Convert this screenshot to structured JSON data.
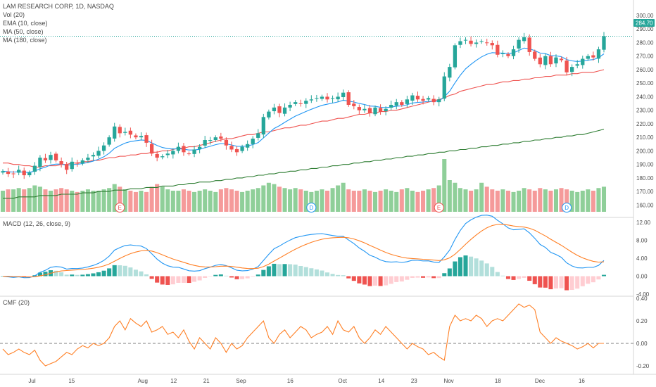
{
  "legend": {
    "title": "LAM RESEARCH CORP, 1D, NASDAQ",
    "vol": "Vol (20)",
    "ema": "EMA (10, close)",
    "ma50": "MA (50, close)",
    "ma180": "MA (180, close)",
    "macd": "MACD (12, 26, close, 9)",
    "cmf": "CMF (20)"
  },
  "price_tag": "284.70",
  "x_ticks": [
    "Jul",
    "15",
    "Aug",
    "12",
    "21",
    "Sep",
    "16",
    "Oct",
    "14",
    "23",
    "Nov",
    "18",
    "Dec",
    "16"
  ],
  "colors": {
    "up": "#26a69a",
    "down": "#ef5350",
    "ema": "#2196f3",
    "ma50": "#ef5350",
    "ma180": "#2e7d32",
    "macd": "#2196f3",
    "signal": "#ff7f24",
    "cmf": "#ff7f24",
    "vol_up": "#8fcf99",
    "vol_down": "#f59a9a",
    "hist_up_strong": "#26a69a",
    "hist_up_weak": "#b2dfdb",
    "hist_down_strong": "#ef5350",
    "hist_down_weak": "#ffcdd2"
  },
  "chart_data": [
    {
      "type": "candlestick",
      "title": "LAM RESEARCH CORP, 1D, NASDAQ",
      "ylim": [
        155,
        300
      ],
      "y_ticks": [
        "160.00",
        "170.00",
        "180.00",
        "190.00",
        "200.00",
        "210.00",
        "220.00",
        "230.00",
        "240.00",
        "250.00",
        "260.00",
        "270.00",
        "280.00",
        "290.00",
        "300.00"
      ],
      "last_price": 284.7,
      "close": [
        185,
        183,
        183,
        186,
        182,
        184,
        189,
        195,
        193,
        197,
        193,
        190,
        186,
        192,
        191,
        193,
        195,
        197,
        200,
        204,
        210,
        218,
        213,
        214,
        212,
        210,
        211,
        206,
        198,
        195,
        196,
        198,
        200,
        203,
        199,
        198,
        201,
        203,
        208,
        208,
        210,
        209,
        204,
        201,
        199,
        203,
        205,
        209,
        213,
        225,
        229,
        232,
        228,
        232,
        234,
        236,
        235,
        237,
        238,
        239,
        240,
        238,
        239,
        240,
        243,
        234,
        233,
        230,
        231,
        228,
        232,
        229,
        231,
        234,
        236,
        234,
        238,
        241,
        238,
        237,
        239,
        236,
        238,
        255,
        262,
        278,
        281,
        282,
        279,
        280,
        281,
        280,
        278,
        271,
        272,
        270,
        275,
        282,
        284,
        273,
        268,
        264,
        270,
        264,
        269,
        267,
        258,
        262,
        264,
        268,
        270,
        269,
        275,
        284.7
      ],
      "ma50": [
        191,
        191,
        190,
        190,
        189,
        189,
        188,
        188,
        189,
        189,
        189,
        190,
        190,
        191,
        191,
        192,
        192,
        193,
        193,
        194,
        195,
        195,
        196,
        196,
        197,
        197,
        198,
        198,
        199,
        199,
        200,
        200,
        201,
        202,
        202,
        203,
        203,
        204,
        205,
        206,
        207,
        208,
        209,
        209,
        210,
        211,
        212,
        212,
        213,
        214,
        214,
        215,
        216,
        217,
        217,
        218,
        219,
        219,
        220,
        221,
        222,
        222,
        223,
        224,
        224,
        225,
        226,
        227,
        227,
        228,
        228,
        229,
        229,
        230,
        230,
        231,
        232,
        233,
        234,
        235,
        236,
        237,
        238,
        239,
        241,
        242,
        244,
        245,
        246,
        247,
        248,
        249,
        249,
        250,
        251,
        251,
        252,
        252,
        253,
        253,
        254,
        254,
        255,
        255,
        256,
        256,
        256,
        257,
        257,
        258,
        258,
        258,
        259,
        260
      ],
      "ma180": [
        165,
        165,
        165,
        166,
        166,
        166,
        166,
        167,
        167,
        167,
        167,
        168,
        168,
        168,
        168,
        169,
        169,
        169,
        170,
        170,
        170,
        171,
        171,
        171,
        172,
        172,
        172,
        173,
        173,
        173,
        174,
        174,
        174,
        175,
        175,
        176,
        176,
        177,
        177,
        177,
        178,
        178,
        179,
        179,
        180,
        180,
        181,
        181,
        182,
        182,
        183,
        183,
        184,
        184,
        185,
        185,
        186,
        186,
        187,
        187,
        188,
        188,
        189,
        189,
        190,
        190,
        191,
        191,
        192,
        192,
        193,
        193,
        194,
        194,
        195,
        195,
        196,
        196,
        197,
        197,
        198,
        198,
        199,
        199,
        200,
        200,
        201,
        201,
        202,
        202,
        203,
        203,
        204,
        204,
        205,
        205,
        206,
        206,
        207,
        207,
        208,
        208,
        209,
        209,
        210,
        210,
        211,
        211,
        212,
        212,
        213,
        214,
        215,
        216
      ],
      "volume": [
        16,
        17,
        17,
        18,
        17,
        18,
        20,
        19,
        17,
        16,
        17,
        18,
        17,
        16,
        15,
        16,
        17,
        16,
        16,
        17,
        18,
        21,
        19,
        17,
        16,
        15,
        16,
        15,
        19,
        21,
        19,
        17,
        16,
        16,
        17,
        16,
        15,
        16,
        17,
        16,
        15,
        17,
        18,
        17,
        16,
        15,
        16,
        17,
        18,
        20,
        22,
        21,
        19,
        18,
        17,
        18,
        17,
        16,
        15,
        16,
        17,
        16,
        18,
        20,
        22,
        17,
        16,
        16,
        17,
        16,
        15,
        16,
        17,
        16,
        15,
        17,
        18,
        16,
        15,
        16,
        17,
        18,
        20,
        40,
        24,
        22,
        18,
        17,
        16,
        17,
        22,
        19,
        17,
        16,
        17,
        16,
        15,
        16,
        18,
        17,
        16,
        18,
        17,
        16,
        17,
        18,
        17,
        16,
        15,
        16,
        17,
        16,
        18,
        19
      ]
    },
    {
      "type": "line",
      "title": "MACD (12, 26, close, 9)",
      "ylim": [
        -4,
        12
      ],
      "y_ticks": [
        "-4.00",
        "0.00",
        "4.00",
        "8.00",
        "12.00"
      ]
    },
    {
      "type": "line",
      "title": "CMF (20)",
      "ylim": [
        -0.25,
        0.4
      ],
      "y_ticks": [
        "-0.20",
        "0.00",
        "0.20",
        "0.40"
      ],
      "values": [
        -0.05,
        -0.1,
        -0.08,
        -0.05,
        -0.08,
        -0.1,
        -0.06,
        -0.15,
        -0.2,
        -0.18,
        -0.16,
        -0.12,
        -0.08,
        -0.1,
        -0.05,
        -0.02,
        -0.04,
        0.0,
        -0.02,
        0.0,
        0.05,
        0.15,
        0.2,
        0.12,
        0.22,
        0.18,
        0.15,
        0.2,
        0.1,
        0.12,
        0.15,
        0.08,
        0.1,
        0.05,
        0.12,
        0.02,
        -0.05,
        0.05,
        0.0,
        -0.05,
        0.05,
        0.0,
        -0.08,
        0.0,
        -0.05,
        -0.02,
        0.05,
        0.1,
        0.15,
        0.2,
        0.05,
        0.0,
        0.08,
        0.12,
        0.05,
        0.1,
        0.15,
        0.12,
        0.05,
        0.08,
        0.1,
        0.15,
        0.08,
        0.2,
        0.12,
        0.1,
        0.15,
        0.05,
        0.0,
        0.05,
        0.12,
        0.08,
        0.15,
        0.1,
        0.05,
        0.0,
        -0.05,
        0.0,
        -0.03,
        -0.05,
        -0.1,
        -0.08,
        -0.12,
        -0.15,
        0.15,
        0.25,
        0.2,
        0.22,
        0.2,
        0.25,
        0.22,
        0.15,
        0.2,
        0.22,
        0.2,
        0.25,
        0.3,
        0.35,
        0.32,
        0.34,
        0.3,
        0.1,
        0.05,
        0.0,
        0.05,
        0.02,
        0.0,
        -0.02,
        -0.05,
        -0.03,
        0.0,
        -0.04,
        0.0,
        0.0
      ]
    }
  ]
}
